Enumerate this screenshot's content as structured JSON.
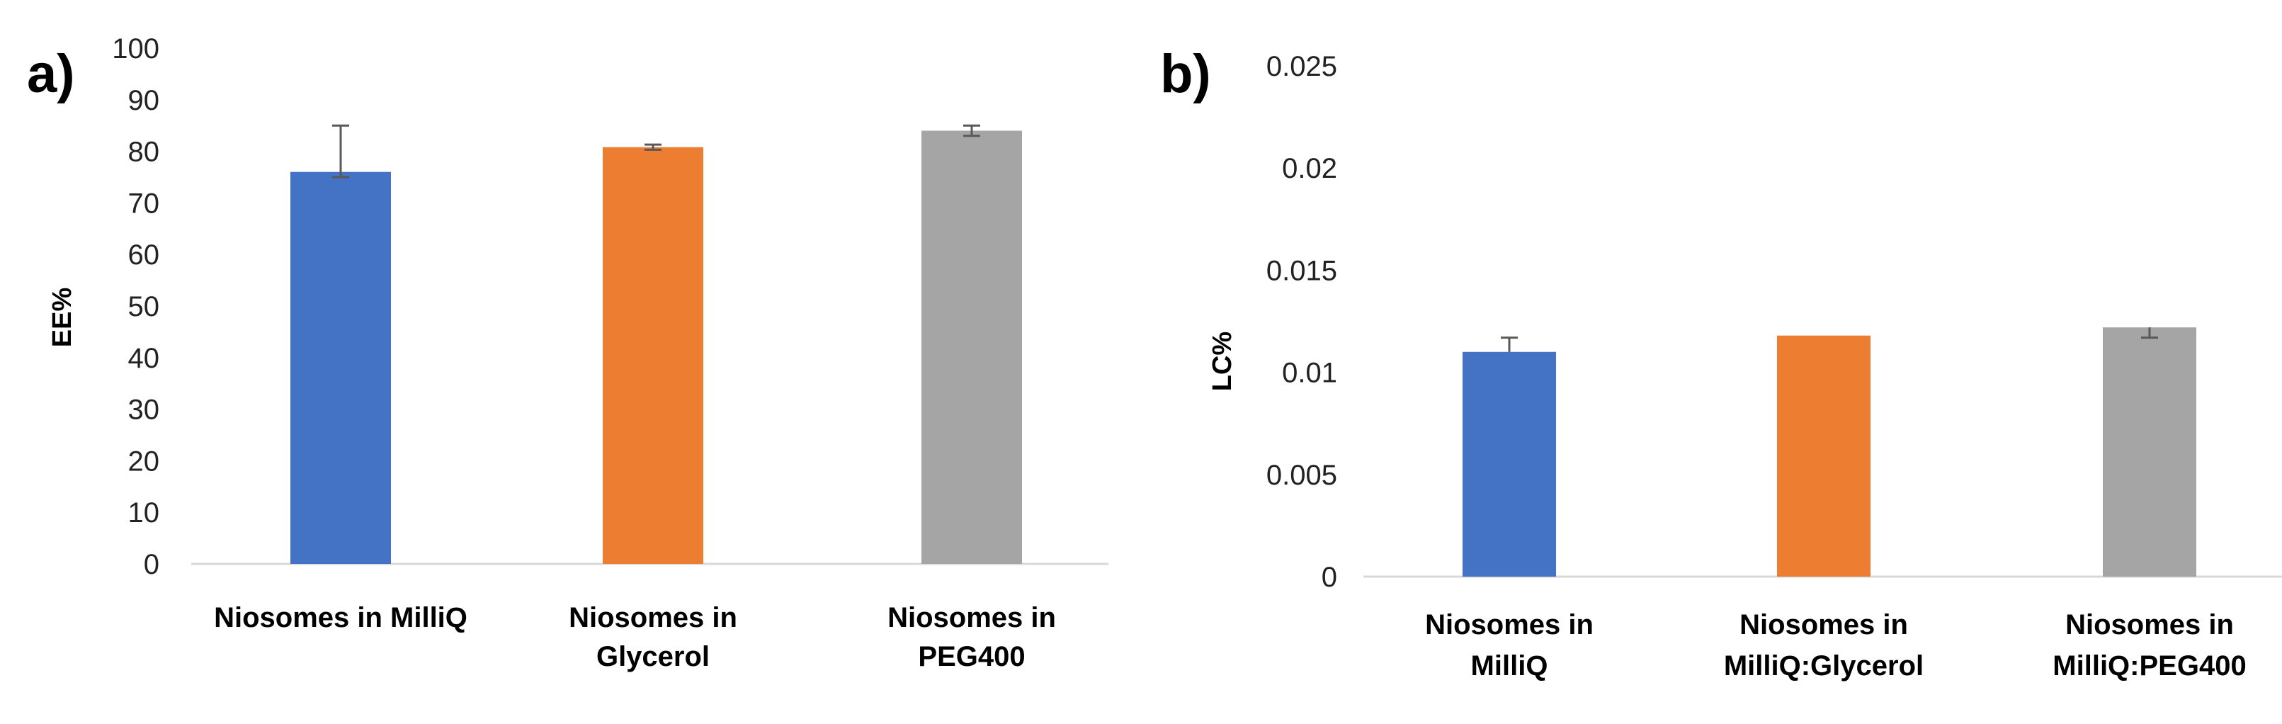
{
  "chart_data": [
    {
      "type": "bar",
      "panel_label": "a)",
      "ylabel": "EE%",
      "ylim": [
        0,
        100
      ],
      "yticks": [
        "0",
        "10",
        "20",
        "30",
        "40",
        "50",
        "60",
        "70",
        "80",
        "90",
        "100"
      ],
      "ytick_values": [
        0,
        10,
        20,
        30,
        40,
        50,
        60,
        70,
        80,
        90,
        100
      ],
      "categories": [
        [
          "Niosomes in MilliQ"
        ],
        [
          "Niosomes in",
          "Glycerol"
        ],
        [
          "Niosomes in",
          "PEG400"
        ]
      ],
      "values": [
        76,
        80.8,
        84
      ],
      "error_plus": [
        9,
        0.5,
        1
      ],
      "error_minus": [
        1,
        0.5,
        1
      ],
      "colors": [
        "#4472C4",
        "#ED7D31",
        "#A5A5A5"
      ],
      "grid": false
    },
    {
      "type": "bar",
      "panel_label": "b)",
      "ylabel": "LC%",
      "ylim": [
        0,
        0.025
      ],
      "yticks": [
        "0",
        "0.005",
        "0.01",
        "0.015",
        "0.02",
        "0.025"
      ],
      "ytick_values": [
        0,
        0.005,
        0.01,
        0.015,
        0.02,
        0.025
      ],
      "categories": [
        [
          "Niosomes in",
          "MilliQ"
        ],
        [
          "Niosomes in",
          "MilliQ:Glycerol"
        ],
        [
          "Niosomes in",
          "MilliQ:PEG400"
        ]
      ],
      "values": [
        0.011,
        0.0118,
        0.0122
      ],
      "error_plus": [
        0.0007,
        0.0,
        0.0
      ],
      "error_minus": [
        0.0,
        0.0,
        0.0005
      ],
      "colors": [
        "#4472C4",
        "#ED7D31",
        "#A5A5A5"
      ],
      "grid": false
    }
  ]
}
